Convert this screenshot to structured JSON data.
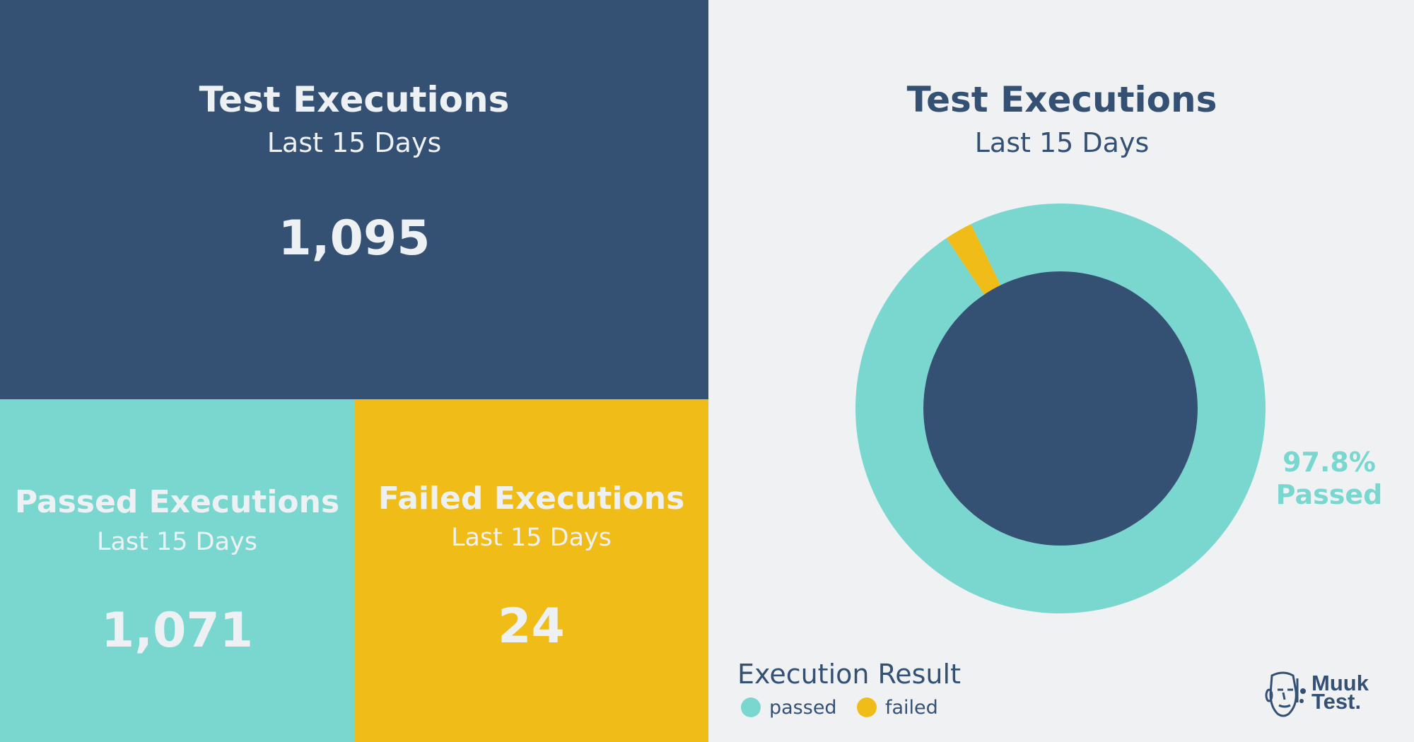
{
  "tiles": {
    "total": {
      "title": "Test Executions",
      "subtitle": "Last 15 Days",
      "value": "1,095"
    },
    "passed": {
      "title": "Passed Executions",
      "subtitle": "Last 15 Days",
      "value": "1,071"
    },
    "failed": {
      "title": "Failed Executions",
      "subtitle": "Last 15 Days",
      "value": "24"
    }
  },
  "colors": {
    "navy": "#345174",
    "teal": "#7ad7d0",
    "yellow": "#f0bc18",
    "background": "#f0f1f3"
  },
  "chart_data": {
    "type": "pie",
    "title": "Test Executions",
    "subtitle": "Last 15 Days",
    "categories": [
      "passed",
      "failed"
    ],
    "values": [
      1071,
      24
    ],
    "colors": [
      "#7ad7d0",
      "#f0bc18"
    ],
    "center_label": {
      "line1": "97.8%",
      "line2": "Passed"
    },
    "legend": {
      "title": "Execution Result",
      "position": "bottom-left"
    }
  },
  "logo": {
    "line1": "Muuk",
    "line2": "Test."
  }
}
